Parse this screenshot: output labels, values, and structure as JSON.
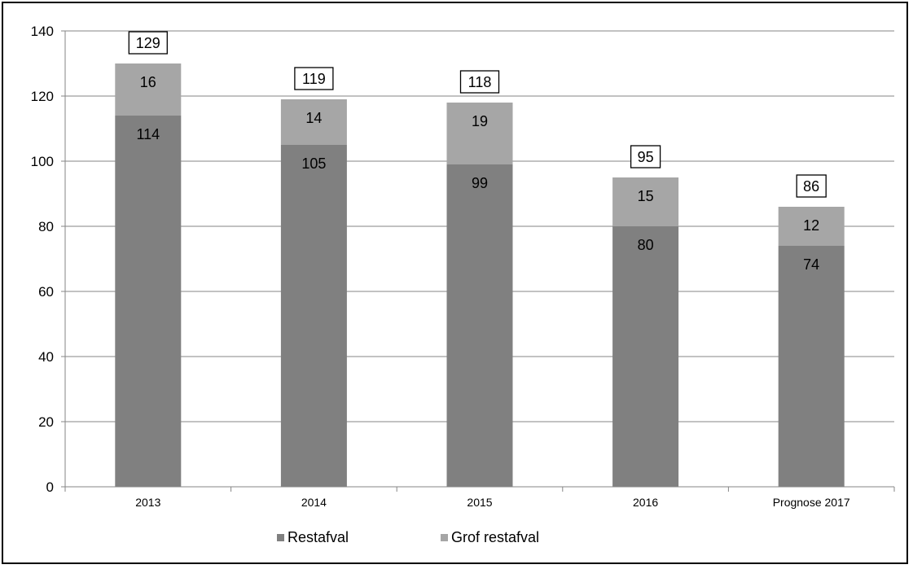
{
  "chart_data": {
    "type": "bar",
    "stacked": true,
    "categories": [
      "2013",
      "2014",
      "2015",
      "2016",
      "Prognose 2017"
    ],
    "series": [
      {
        "name": "Restafval",
        "values": [
          114,
          105,
          99,
          80,
          74
        ],
        "color": "#808080"
      },
      {
        "name": "Grof restafval",
        "values": [
          16,
          14,
          19,
          15,
          12
        ],
        "color": "#a6a6a6"
      }
    ],
    "totals": [
      129,
      119,
      118,
      95,
      86
    ],
    "ylim": [
      0,
      140
    ],
    "yticks": [
      0,
      20,
      40,
      60,
      80,
      100,
      120,
      140
    ],
    "grid": true,
    "legend_position": "bottom",
    "title": "",
    "xlabel": "",
    "ylabel": ""
  }
}
